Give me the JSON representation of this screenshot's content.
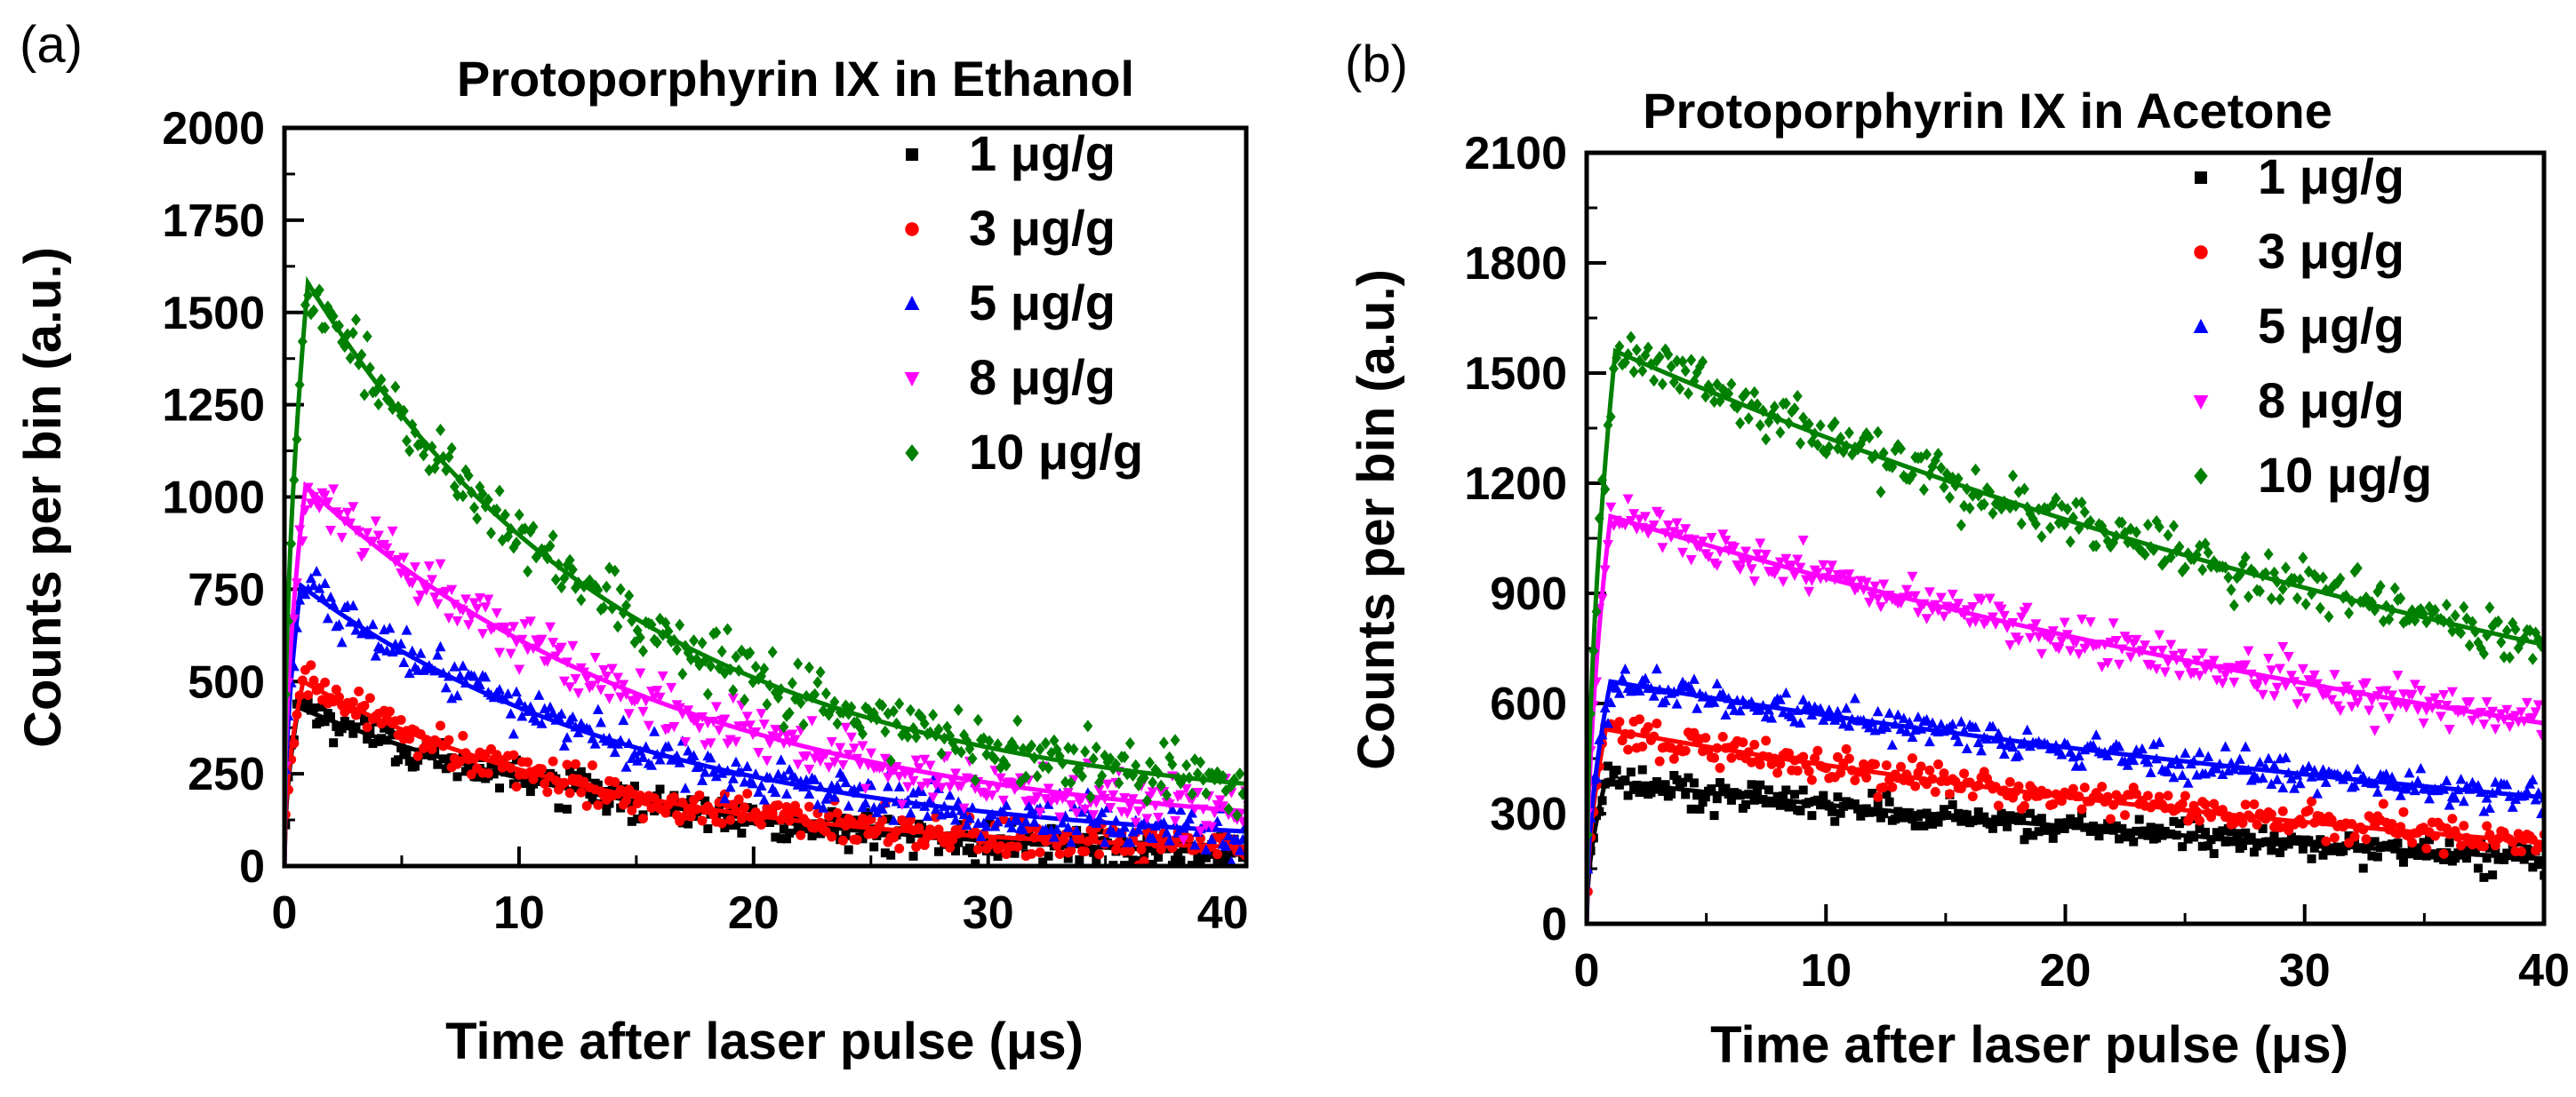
{
  "chart_data": [
    {
      "type": "scatter",
      "panel_label": "(a)",
      "title": "Protoporphyrin IX in Ethanol",
      "xlabel": "Time after laser pulse (μs)",
      "ylabel": "Counts per bin (a.u.)",
      "xlim": [
        0,
        41
      ],
      "ylim": [
        0,
        2000
      ],
      "xticks": [
        "0",
        "10",
        "20",
        "30",
        "40"
      ],
      "yticks": [
        "0",
        "250",
        "500",
        "750",
        "1000",
        "1250",
        "1500",
        "1750",
        "2000"
      ],
      "legend_position": "top-right",
      "grid": false,
      "fit_lines": true,
      "series": [
        {
          "name": "1  μg/g",
          "color": "#000000",
          "marker": "square",
          "peak_time": 0.6,
          "peak": 430,
          "decay_tau": 16,
          "baseline": 0,
          "noise": 25
        },
        {
          "name": "3 μg/g",
          "color": "#ff0000",
          "marker": "circle",
          "peak_time": 0.8,
          "peak": 500,
          "decay_tau": 13,
          "baseline": 30,
          "noise": 25
        },
        {
          "name": "5 μg/g",
          "color": "#0000ff",
          "marker": "triangle-up",
          "peak_time": 0.7,
          "peak": 760,
          "decay_tau": 15,
          "baseline": 45,
          "noise": 30
        },
        {
          "name": "8 μg/g",
          "color": "#ff00ff",
          "marker": "triangle-down",
          "peak_time": 0.9,
          "peak": 1030,
          "decay_tau": 16,
          "baseline": 70,
          "noise": 35
        },
        {
          "name": "10 μg/g",
          "color": "#008000",
          "marker": "diamond",
          "peak_time": 1.0,
          "peak": 1580,
          "decay_tau": 14,
          "baseline": 140,
          "noise": 40
        }
      ]
    },
    {
      "type": "scatter",
      "panel_label": "(b)",
      "title": "Protoporphyrin IX in Acetone",
      "xlabel": "Time after laser pulse (μs)",
      "ylabel": "Counts per bin (a.u.)",
      "xlim": [
        0,
        40
      ],
      "ylim": [
        0,
        2100
      ],
      "xticks": [
        "0",
        "10",
        "20",
        "30",
        "40"
      ],
      "yticks": [
        "0",
        "300",
        "600",
        "900",
        "1200",
        "1500",
        "1800",
        "2100"
      ],
      "legend_position": "top-right",
      "grid": false,
      "fit_lines": true,
      "series": [
        {
          "name": "1 μg/g",
          "color": "#000000",
          "marker": "square",
          "peak_time": 0.8,
          "peak": 390,
          "decay_tau": 50,
          "baseline": 0,
          "noise": 20
        },
        {
          "name": "3 μg/g",
          "color": "#ff0000",
          "marker": "circle",
          "peak_time": 0.8,
          "peak": 530,
          "decay_tau": 45,
          "baseline": 0,
          "noise": 22
        },
        {
          "name": "5 μg/g",
          "color": "#0000ff",
          "marker": "triangle-up",
          "peak_time": 1.0,
          "peak": 660,
          "decay_tau": 60,
          "baseline": 0,
          "noise": 25
        },
        {
          "name": "8 μg/g",
          "color": "#ff00ff",
          "marker": "triangle-down",
          "peak_time": 1.0,
          "peak": 1110,
          "decay_tau": 55,
          "baseline": 0,
          "noise": 30
        },
        {
          "name": "10 μg/g",
          "color": "#008000",
          "marker": "diamond",
          "peak_time": 1.2,
          "peak": 1560,
          "decay_tau": 54,
          "baseline": 0,
          "noise": 35
        }
      ]
    }
  ]
}
